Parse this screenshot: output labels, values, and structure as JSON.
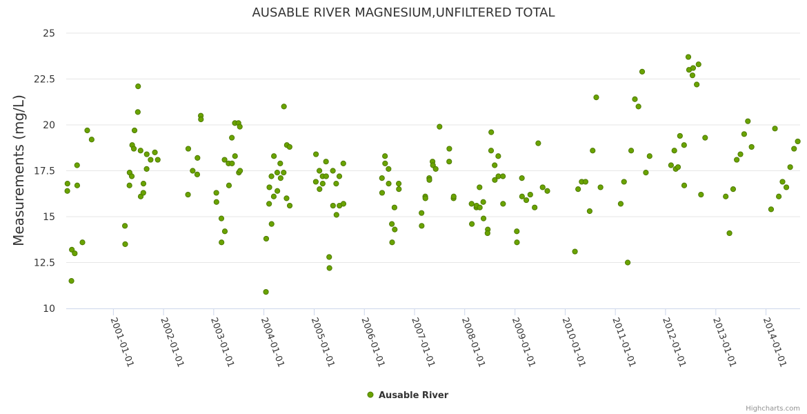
{
  "chart_data": {
    "type": "scatter",
    "title": "AUSABLE RIVER MAGNESIUM,UNFILTERED TOTAL",
    "ylabel": "Measurements (mg/L)",
    "xlabel": "",
    "ylim": [
      10,
      25
    ],
    "yticks": [
      "10",
      "12.5",
      "15",
      "17.5",
      "20",
      "22.5",
      "25"
    ],
    "xlim": [
      "2000-01-24",
      "2014-09-06"
    ],
    "xticks": [
      "2001-01-01",
      "2002-01-01",
      "2003-01-01",
      "2004-01-01",
      "2005-01-01",
      "2006-01-01",
      "2007-01-01",
      "2008-01-01",
      "2009-01-01",
      "2010-01-01",
      "2011-01-01",
      "2012-01-01",
      "2013-01-01",
      "2014-01-01"
    ],
    "grid": "horizontal",
    "legend_position": "bottom-center",
    "series": [
      {
        "name": "Ausable River",
        "color": "#6aa300",
        "points": [
          [
            "2000-02-01",
            16.4
          ],
          [
            "2000-02-02",
            16.8
          ],
          [
            "2000-03-02",
            11.5
          ],
          [
            "2000-03-05",
            13.2
          ],
          [
            "2000-03-26",
            13.0
          ],
          [
            "2000-04-12",
            17.8
          ],
          [
            "2000-04-13",
            16.7
          ],
          [
            "2000-05-21",
            13.6
          ],
          [
            "2000-06-25",
            19.7
          ],
          [
            "2000-07-27",
            19.2
          ],
          [
            "2001-03-26",
            14.5
          ],
          [
            "2001-03-28",
            13.5
          ],
          [
            "2001-04-28",
            16.7
          ],
          [
            "2001-04-29",
            17.4
          ],
          [
            "2001-05-15",
            17.2
          ],
          [
            "2001-05-18",
            18.9
          ],
          [
            "2001-05-30",
            18.7
          ],
          [
            "2001-06-04",
            19.7
          ],
          [
            "2001-06-30",
            22.1
          ],
          [
            "2001-06-28",
            20.7
          ],
          [
            "2001-07-18",
            18.6
          ],
          [
            "2001-07-19",
            16.1
          ],
          [
            "2001-08-07",
            16.3
          ],
          [
            "2001-08-08",
            16.8
          ],
          [
            "2001-08-31",
            17.6
          ],
          [
            "2001-09-01",
            18.4
          ],
          [
            "2001-09-29",
            18.1
          ],
          [
            "2001-10-30",
            18.5
          ],
          [
            "2001-11-20",
            18.1
          ],
          [
            "2002-06-30",
            18.7
          ],
          [
            "2002-06-28",
            16.2
          ],
          [
            "2002-08-01",
            17.5
          ],
          [
            "2002-09-03",
            17.3
          ],
          [
            "2002-09-05",
            18.2
          ],
          [
            "2002-09-29",
            20.5
          ],
          [
            "2002-09-30",
            20.3
          ],
          [
            "2003-01-20",
            16.3
          ],
          [
            "2003-01-21",
            15.8
          ],
          [
            "2003-02-26",
            14.9
          ],
          [
            "2003-02-27",
            13.6
          ],
          [
            "2003-03-21",
            18.1
          ],
          [
            "2003-03-23",
            14.2
          ],
          [
            "2003-04-19",
            17.9
          ],
          [
            "2003-04-22",
            16.7
          ],
          [
            "2003-05-13",
            19.3
          ],
          [
            "2003-05-14",
            17.9
          ],
          [
            "2003-06-04",
            20.1
          ],
          [
            "2003-06-05",
            18.3
          ],
          [
            "2003-06-30",
            20.1
          ],
          [
            "2003-07-03",
            17.4
          ],
          [
            "2003-07-10",
            19.9
          ],
          [
            "2003-07-12",
            17.5
          ],
          [
            "2004-01-16",
            10.9
          ],
          [
            "2004-01-18",
            13.8
          ],
          [
            "2004-02-08",
            15.7
          ],
          [
            "2004-02-10",
            16.6
          ],
          [
            "2004-02-25",
            17.2
          ],
          [
            "2004-02-26",
            14.6
          ],
          [
            "2004-03-13",
            16.1
          ],
          [
            "2004-03-14",
            18.3
          ],
          [
            "2004-04-07",
            17.4
          ],
          [
            "2004-04-08",
            16.4
          ],
          [
            "2004-04-29",
            17.9
          ],
          [
            "2004-05-02",
            17.1
          ],
          [
            "2004-05-24",
            17.4
          ],
          [
            "2004-05-26",
            21.0
          ],
          [
            "2004-06-16",
            18.9
          ],
          [
            "2004-06-14",
            16.0
          ],
          [
            "2004-07-06",
            18.8
          ],
          [
            "2004-07-07",
            15.6
          ],
          [
            "2005-01-13",
            16.9
          ],
          [
            "2005-01-14",
            18.4
          ],
          [
            "2005-02-08",
            17.5
          ],
          [
            "2005-02-09",
            16.5
          ],
          [
            "2005-03-03",
            17.2
          ],
          [
            "2005-03-04",
            16.8
          ],
          [
            "2005-03-28",
            18.0
          ],
          [
            "2005-03-29",
            17.2
          ],
          [
            "2005-04-20",
            12.8
          ],
          [
            "2005-04-22",
            12.2
          ],
          [
            "2005-05-17",
            17.5
          ],
          [
            "2005-05-18",
            15.6
          ],
          [
            "2005-06-10",
            16.8
          ],
          [
            "2005-06-12",
            15.1
          ],
          [
            "2005-07-03",
            17.2
          ],
          [
            "2005-07-04",
            15.6
          ],
          [
            "2005-08-01",
            17.9
          ],
          [
            "2005-08-02",
            15.7
          ],
          [
            "2006-05-09",
            17.1
          ],
          [
            "2006-05-10",
            16.3
          ],
          [
            "2006-05-31",
            18.3
          ],
          [
            "2006-06-01",
            17.9
          ],
          [
            "2006-06-26",
            17.6
          ],
          [
            "2006-06-27",
            16.8
          ],
          [
            "2006-07-20",
            14.6
          ],
          [
            "2006-07-22",
            13.6
          ],
          [
            "2006-08-08",
            15.5
          ],
          [
            "2006-08-10",
            14.3
          ],
          [
            "2006-09-08",
            16.8
          ],
          [
            "2006-09-09",
            16.5
          ],
          [
            "2007-02-21",
            15.2
          ],
          [
            "2007-02-22",
            14.5
          ],
          [
            "2007-03-20",
            16.1
          ],
          [
            "2007-03-21",
            16.0
          ],
          [
            "2007-04-18",
            17.1
          ],
          [
            "2007-04-19",
            17.0
          ],
          [
            "2007-05-12",
            18.0
          ],
          [
            "2007-05-15",
            17.8
          ],
          [
            "2007-06-04",
            17.6
          ],
          [
            "2007-07-02",
            19.9
          ],
          [
            "2007-09-11",
            18.7
          ],
          [
            "2007-09-10",
            18.0
          ],
          [
            "2007-10-12",
            16.0
          ],
          [
            "2007-10-13",
            16.1
          ],
          [
            "2008-02-20",
            15.7
          ],
          [
            "2008-02-22",
            14.6
          ],
          [
            "2008-03-26",
            15.5
          ],
          [
            "2008-03-27",
            15.6
          ],
          [
            "2008-04-18",
            16.6
          ],
          [
            "2008-04-20",
            15.5
          ],
          [
            "2008-05-15",
            15.8
          ],
          [
            "2008-05-17",
            14.9
          ],
          [
            "2008-06-17",
            14.3
          ],
          [
            "2008-06-15",
            14.1
          ],
          [
            "2008-07-12",
            19.6
          ],
          [
            "2008-07-11",
            18.6
          ],
          [
            "2008-08-06",
            17.8
          ],
          [
            "2008-08-07",
            17.0
          ],
          [
            "2008-09-01",
            18.3
          ],
          [
            "2008-09-02",
            17.2
          ],
          [
            "2008-10-05",
            17.2
          ],
          [
            "2008-10-06",
            15.7
          ],
          [
            "2009-01-14",
            14.2
          ],
          [
            "2009-01-15",
            13.6
          ],
          [
            "2009-02-20",
            17.1
          ],
          [
            "2009-02-21",
            16.1
          ],
          [
            "2009-03-24",
            15.9
          ],
          [
            "2009-04-22",
            16.2
          ],
          [
            "2009-05-24",
            15.5
          ],
          [
            "2009-06-19",
            19.0
          ],
          [
            "2009-07-21",
            16.6
          ],
          [
            "2009-08-24",
            16.4
          ],
          [
            "2010-03-13",
            13.1
          ],
          [
            "2010-04-05",
            16.5
          ],
          [
            "2010-05-01",
            16.9
          ],
          [
            "2010-05-29",
            16.9
          ],
          [
            "2010-06-28",
            15.3
          ],
          [
            "2010-07-20",
            18.6
          ],
          [
            "2010-08-15",
            21.5
          ],
          [
            "2010-09-15",
            16.6
          ],
          [
            "2011-02-09",
            15.7
          ],
          [
            "2011-03-05",
            16.9
          ],
          [
            "2011-04-01",
            12.5
          ],
          [
            "2011-04-26",
            18.6
          ],
          [
            "2011-05-23",
            21.4
          ],
          [
            "2011-06-18",
            21.0
          ],
          [
            "2011-07-15",
            22.9
          ],
          [
            "2011-08-11",
            17.4
          ],
          [
            "2011-09-07",
            18.3
          ],
          [
            "2012-02-10",
            17.8
          ],
          [
            "2012-03-05",
            18.6
          ],
          [
            "2012-03-15",
            17.6
          ],
          [
            "2012-04-01",
            17.7
          ],
          [
            "2012-04-15",
            19.4
          ],
          [
            "2012-05-15",
            18.9
          ],
          [
            "2012-05-16",
            16.7
          ],
          [
            "2012-06-15",
            23.7
          ],
          [
            "2012-06-20",
            23.0
          ],
          [
            "2012-07-15",
            22.7
          ],
          [
            "2012-07-20",
            23.1
          ],
          [
            "2012-08-15",
            22.2
          ],
          [
            "2012-08-28",
            23.3
          ],
          [
            "2012-09-15",
            16.2
          ],
          [
            "2012-10-15",
            19.3
          ],
          [
            "2013-03-14",
            16.1
          ],
          [
            "2013-04-10",
            14.1
          ],
          [
            "2013-05-07",
            16.5
          ],
          [
            "2013-06-02",
            18.1
          ],
          [
            "2013-06-29",
            18.4
          ],
          [
            "2013-07-26",
            19.5
          ],
          [
            "2013-08-22",
            20.2
          ],
          [
            "2013-09-18",
            18.8
          ],
          [
            "2014-02-07",
            15.4
          ],
          [
            "2014-03-07",
            19.8
          ],
          [
            "2014-04-04",
            16.1
          ],
          [
            "2014-05-01",
            16.9
          ],
          [
            "2014-05-29",
            16.6
          ],
          [
            "2014-06-26",
            17.7
          ],
          [
            "2014-07-24",
            18.7
          ],
          [
            "2014-08-20",
            19.1
          ]
        ]
      }
    ],
    "credits": "Highcharts.com"
  }
}
